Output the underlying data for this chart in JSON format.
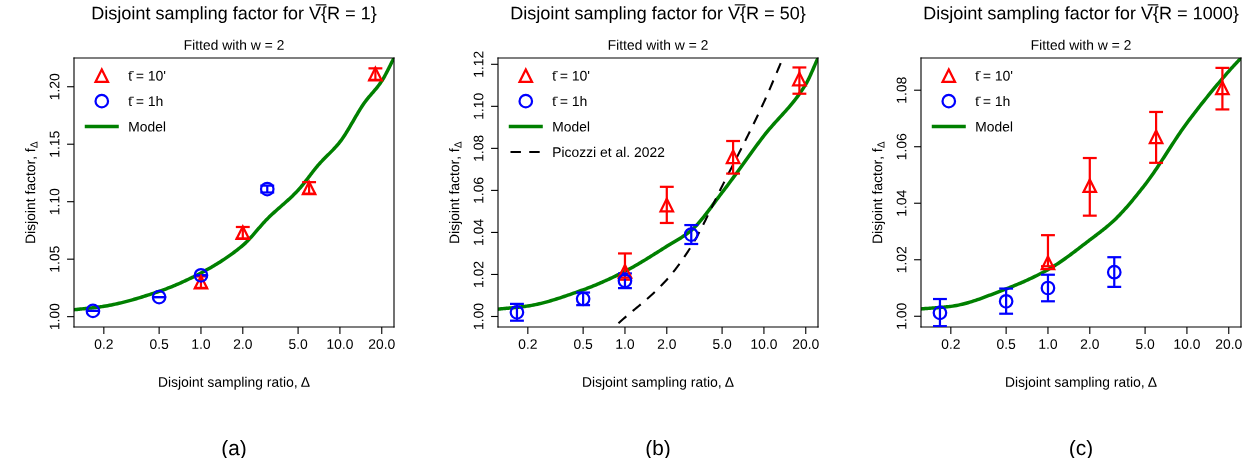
{
  "chart_data": [
    {
      "type": "scatter",
      "title": "Disjoint sampling factor for V̅{R = 1}",
      "subtitle": "Fitted with w = 2",
      "xlabel": "Disjoint sampling ratio, Δ",
      "ylabel": "Disjoint factor, f$_{Δ}$",
      "log": "x",
      "grid": false,
      "legend": "top left",
      "xlim": [
        0.122,
        24.5
      ],
      "xticks": [
        {
          "value": 0.2,
          "label": "0.2"
        },
        {
          "value": 0.5,
          "label": "0.5"
        },
        {
          "value": 1,
          "label": "1.0"
        },
        {
          "value": 2,
          "label": "2.0"
        },
        {
          "value": 5,
          "label": "5.0"
        },
        {
          "value": 10,
          "label": "10.0"
        },
        {
          "value": 20,
          "label": "20.0"
        }
      ],
      "ylim": [
        0.991,
        1.225
      ],
      "yticks": [
        {
          "value": 1.0,
          "label": "1.00"
        },
        {
          "value": 1.05,
          "label": "1.05"
        },
        {
          "value": 1.1,
          "label": "1.10"
        },
        {
          "value": 1.15,
          "label": "1.15"
        },
        {
          "value": 1.2,
          "label": "1.20"
        }
      ],
      "series": [
        {
          "name": "t̄ = 10'",
          "marker": "triangle",
          "color": "#ff0000",
          "x": [
            1,
            2,
            6,
            18
          ],
          "values": [
            1.03,
            1.073,
            1.112,
            1.211
          ],
          "errors": [
            0.005,
            0.005,
            0.005,
            0.005
          ]
        },
        {
          "name": "t̄ = 1h",
          "marker": "circle",
          "color": "#0000ff",
          "x": [
            0.167,
            0.5,
            1,
            3
          ],
          "values": [
            1.005,
            1.017,
            1.036,
            1.111
          ],
          "errors": [
            null,
            null,
            null,
            0.003
          ]
        },
        {
          "name": "Model",
          "type": "line",
          "marker": "none",
          "line_style": "solid",
          "color": "#008000",
          "x": [
            0.122,
            0.2,
            0.5,
            1,
            2,
            3,
            5,
            7,
            10,
            15,
            20,
            24.5
          ],
          "values": [
            1.006,
            1.009,
            1.022,
            1.038,
            1.062,
            1.085,
            1.11,
            1.132,
            1.152,
            1.186,
            1.205,
            1.225
          ]
        }
      ],
      "annotations": [
        "(a)"
      ]
    },
    {
      "type": "scatter",
      "title": "Disjoint sampling factor for V̅{R = 50}",
      "subtitle": "Fitted with w = 2",
      "xlabel": "Disjoint sampling ratio, Δ",
      "ylabel": "Disjoint factor, f$_{Δ}$",
      "log": "x",
      "grid": false,
      "legend": "top left",
      "xlim": [
        0.122,
        24.5
      ],
      "xticks": [
        {
          "value": 0.2,
          "label": "0.2"
        },
        {
          "value": 0.5,
          "label": "0.5"
        },
        {
          "value": 1,
          "label": "1.0"
        },
        {
          "value": 2,
          "label": "2.0"
        },
        {
          "value": 5,
          "label": "5.0"
        },
        {
          "value": 10,
          "label": "10.0"
        },
        {
          "value": 20,
          "label": "20.0"
        }
      ],
      "ylim": [
        0.995,
        1.123
      ],
      "yticks": [
        {
          "value": 1.0,
          "label": "1.00"
        },
        {
          "value": 1.02,
          "label": "1.02"
        },
        {
          "value": 1.04,
          "label": "1.04"
        },
        {
          "value": 1.06,
          "label": "1.06"
        },
        {
          "value": 1.08,
          "label": "1.08"
        },
        {
          "value": 1.1,
          "label": "1.10"
        },
        {
          "value": 1.12,
          "label": "1.12"
        }
      ],
      "series": [
        {
          "name": "t̄ = 10'",
          "marker": "triangle",
          "color": "#ff0000",
          "x": [
            1,
            2,
            6,
            18
          ],
          "values": [
            1.0215,
            1.053,
            1.076,
            1.113
          ],
          "errors": [
            [
              1.0175,
              1.03
            ],
            [
              1.0445,
              1.0617
            ],
            [
              1.068,
              1.0835
            ],
            [
              1.106,
              1.1185
            ]
          ]
        },
        {
          "name": "t̄ = 1h",
          "marker": "circle",
          "color": "#0000ff",
          "x": [
            0.167,
            0.5,
            1,
            3
          ],
          "values": [
            1.002,
            1.0084,
            1.017,
            1.039
          ],
          "errors": [
            0.004,
            0.003,
            0.0035,
            0.0045
          ]
        },
        {
          "name": "Model",
          "type": "line",
          "marker": "none",
          "line_style": "solid",
          "color": "#008000",
          "x": [
            0.122,
            0.2,
            0.5,
            1,
            2,
            3,
            5,
            10,
            20,
            24.5
          ],
          "values": [
            1.0035,
            1.005,
            1.0127,
            1.0215,
            1.0334,
            1.041,
            1.059,
            1.086,
            1.1105,
            1.123
          ]
        },
        {
          "name": "Picozzi et al. 2022",
          "type": "line",
          "marker": "none",
          "line_style": "dashed",
          "color": "#000000",
          "x": [
            0.898,
            2,
            3,
            5,
            10,
            13.7
          ],
          "values": [
            0.9968,
            1.0175,
            1.0334,
            1.062,
            1.102,
            1.123
          ]
        }
      ],
      "annotations": [
        "(b)"
      ]
    },
    {
      "type": "scatter",
      "title": "Disjoint sampling factor for V̅{R = 1000}",
      "subtitle": "Fitted with w = 2",
      "xlabel": "Disjoint sampling ratio, Δ",
      "ylabel": "Disjoint factor, f$_{Δ}$",
      "log": "x",
      "grid": false,
      "legend": "top left",
      "xlim": [
        0.122,
        24.5
      ],
      "xticks": [
        {
          "value": 0.2,
          "label": "0.2"
        },
        {
          "value": 0.5,
          "label": "0.5"
        },
        {
          "value": 1,
          "label": "1.0"
        },
        {
          "value": 2,
          "label": "2.0"
        },
        {
          "value": 5,
          "label": "5.0"
        },
        {
          "value": 10,
          "label": "10.0"
        },
        {
          "value": 20,
          "label": "20.0"
        }
      ],
      "ylim": [
        0.9962,
        1.0914
      ],
      "yticks": [
        {
          "value": 1.0,
          "label": "1.00"
        },
        {
          "value": 1.02,
          "label": "1.02"
        },
        {
          "value": 1.04,
          "label": "1.04"
        },
        {
          "value": 1.06,
          "label": "1.06"
        },
        {
          "value": 1.08,
          "label": "1.08"
        }
      ],
      "series": [
        {
          "name": "t̄ = 10'",
          "marker": "triangle",
          "color": "#ff0000",
          "x": [
            1,
            2,
            6,
            18
          ],
          "values": [
            1.0189,
            1.0462,
            1.0635,
            1.0808
          ],
          "errors": [
            [
              1.0177,
              1.0287
            ],
            [
              1.0356,
              1.056
            ],
            [
              1.0543,
              1.0723
            ],
            [
              1.0732,
              1.0879
            ]
          ]
        },
        {
          "name": "t̄ = 1h",
          "marker": "circle",
          "color": "#0000ff",
          "x": [
            0.167,
            0.5,
            1,
            3
          ],
          "values": [
            1.0012,
            1.0053,
            1.01,
            1.0156
          ],
          "errors": [
            [
              0.9965,
              1.0061
            ],
            [
              1.0009,
              1.0098
            ],
            [
              1.0053,
              1.0147
            ],
            [
              1.0104,
              1.0209
            ]
          ]
        },
        {
          "name": "Model",
          "type": "line",
          "marker": "none",
          "line_style": "solid",
          "color": "#008000",
          "x": [
            0.122,
            0.2,
            0.5,
            1,
            2,
            3,
            5,
            10,
            20,
            24.5
          ],
          "values": [
            1.0026,
            1.0035,
            1.0097,
            1.0165,
            1.027,
            1.034,
            1.0466,
            1.0684,
            1.0867,
            1.0914
          ]
        }
      ],
      "annotations": [
        "(c)"
      ]
    }
  ]
}
